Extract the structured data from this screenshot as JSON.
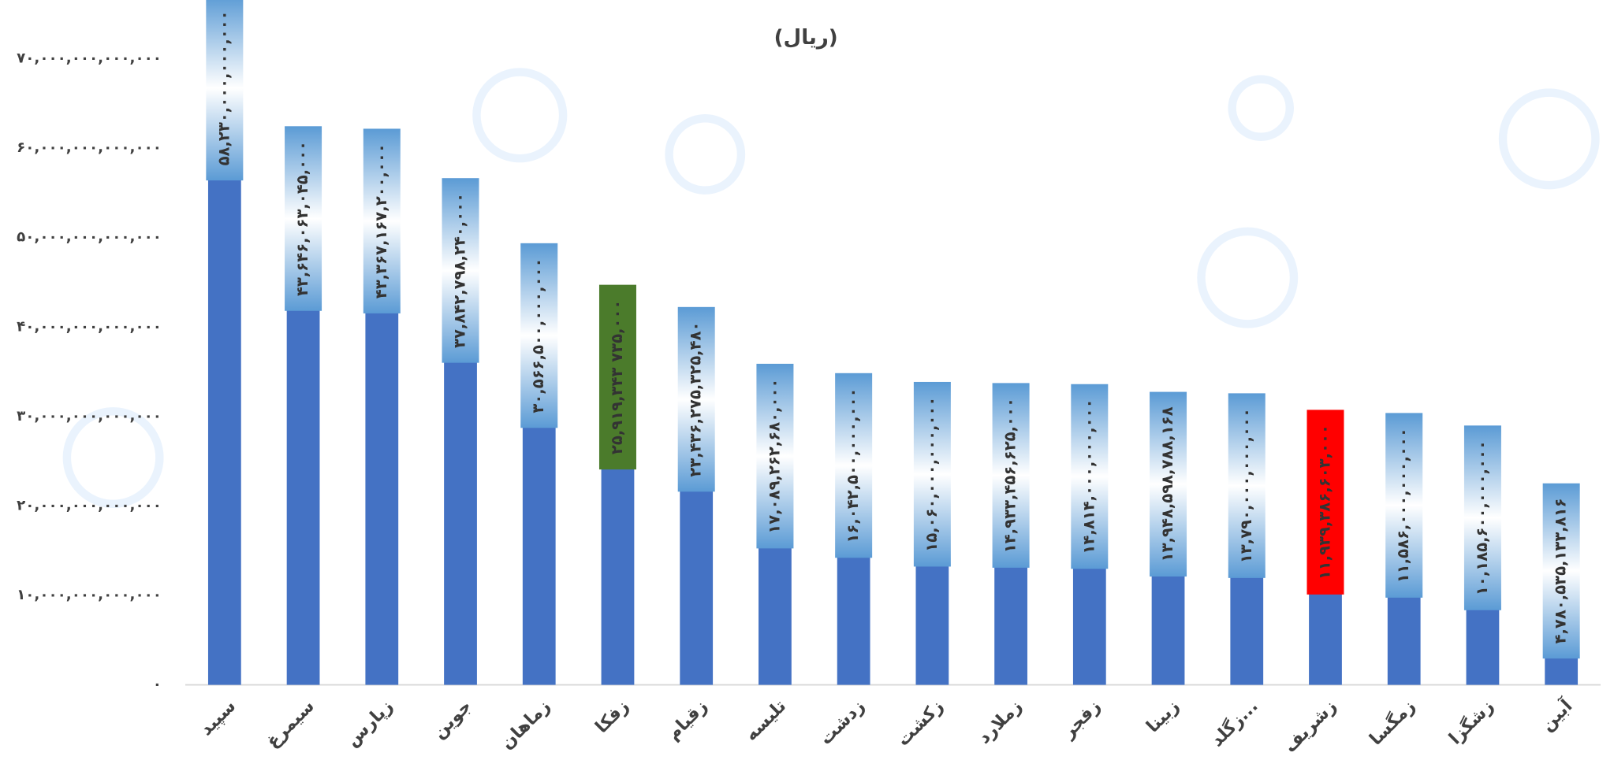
{
  "chart_data": {
    "type": "bar",
    "title": "(ریال)",
    "categories": [
      "سپید",
      "سیمرغ",
      "زپارس",
      "جوین",
      "زماهان",
      "زفکا",
      "زقیام",
      "تلیسه",
      "زدشت",
      "زکشت",
      "زملارد",
      "زفجر",
      "زبینا",
      "زگلد...",
      "زشریف",
      "زمگسا",
      "زشگزا",
      "آبین"
    ],
    "values": [
      58230000000000,
      43646063045000,
      43367167200000,
      37842798240000,
      30566500000000,
      25919343735000,
      23436275325480,
      17089262680000,
      16042500000000,
      15060000000000,
      14933456625000,
      14814000000000,
      13948598788168,
      13790000000000,
      11939386603000,
      11586000000000,
      10185600000000,
      4780535133816
    ],
    "value_labels": [
      "۵۸,۲۳۰,۰۰۰,۰۰۰,۰۰۰",
      "۴۳,۶۴۶,۰۶۳,۰۴۵,۰۰۰",
      "۴۳,۳۶۷,۱۶۷,۲۰۰,۰۰۰",
      "۳۷,۸۴۲,۷۹۸,۲۴۰,۰۰۰",
      "۳۰,۵۶۶,۵۰۰,۰۰۰,۰۰۰",
      "۲۵,۹۱۹,۳۴۳ ۷۳۵,۰۰۰",
      "۲۳,۴۳۶,۲۷۵,۳۲۵,۴۸۰",
      "۱۷,۰۸۹,۲۶۲,۶۸۰,۰۰۰",
      "۱۶,۰۴۲,۵۰۰,۰۰۰,۰۰۰",
      "۱۵,۰۶۰,۰۰۰,۰۰۰,۰۰۰",
      "۱۴,۹۳۳,۴۵۶,۶۲۵,۰۰۰",
      "۱۴,۸۱۴,۰۰۰,۰۰۰,۰۰۰",
      "۱۳,۹۴۸,۵۹۸,۷۸۸,۱۶۸",
      "۱۳,۷۹۰,۰۰۰,۰۰۰,۰۰۰",
      "۱۱,۹۳۹,۳۸۶,۶۰۳,۰۰۰",
      "۱۱,۵۸۶,۰۰۰,۰۰۰,۰۰۰",
      "۱۰,۱۸۵,۶۰۰,۰۰۰,۰۰۰",
      "۴,۷۸۰,۵۳۵,۱۳۳,۸۱۶"
    ],
    "color": "#4472c4",
    "label_color": "#5b9bd5",
    "label_colors": [
      "#5b9bd5",
      "#5b9bd5",
      "#5b9bd5",
      "#5b9bd5",
      "#5b9bd5",
      "#4b7b2b",
      "#5b9bd5",
      "#5b9bd5",
      "#5b9bd5",
      "#5b9bd5",
      "#5b9bd5",
      "#5b9bd5",
      "#5b9bd5",
      "#5b9bd5",
      "#ff0000",
      "#5b9bd5",
      "#5b9bd5",
      "#5b9bd5"
    ],
    "ylim": [
      0,
      70000000000000
    ],
    "yticks": [
      {
        "value": 0,
        "label": "۰"
      },
      {
        "value": 10000000000000,
        "label": "۱۰,۰۰۰,۰۰۰,۰۰۰,۰۰۰"
      },
      {
        "value": 20000000000000,
        "label": "۲۰,۰۰۰,۰۰۰,۰۰۰,۰۰۰"
      },
      {
        "value": 30000000000000,
        "label": "۳۰,۰۰۰,۰۰۰,۰۰۰,۰۰۰"
      },
      {
        "value": 40000000000000,
        "label": "۴۰,۰۰۰,۰۰۰,۰۰۰,۰۰۰"
      },
      {
        "value": 50000000000000,
        "label": "۵۰,۰۰۰,۰۰۰,۰۰۰,۰۰۰"
      },
      {
        "value": 60000000000000,
        "label": "۶۰,۰۰۰,۰۰۰,۰۰۰,۰۰۰"
      },
      {
        "value": 70000000000000,
        "label": "۷۰,۰۰۰,۰۰۰,۰۰۰,۰۰۰"
      }
    ],
    "grid": false
  }
}
